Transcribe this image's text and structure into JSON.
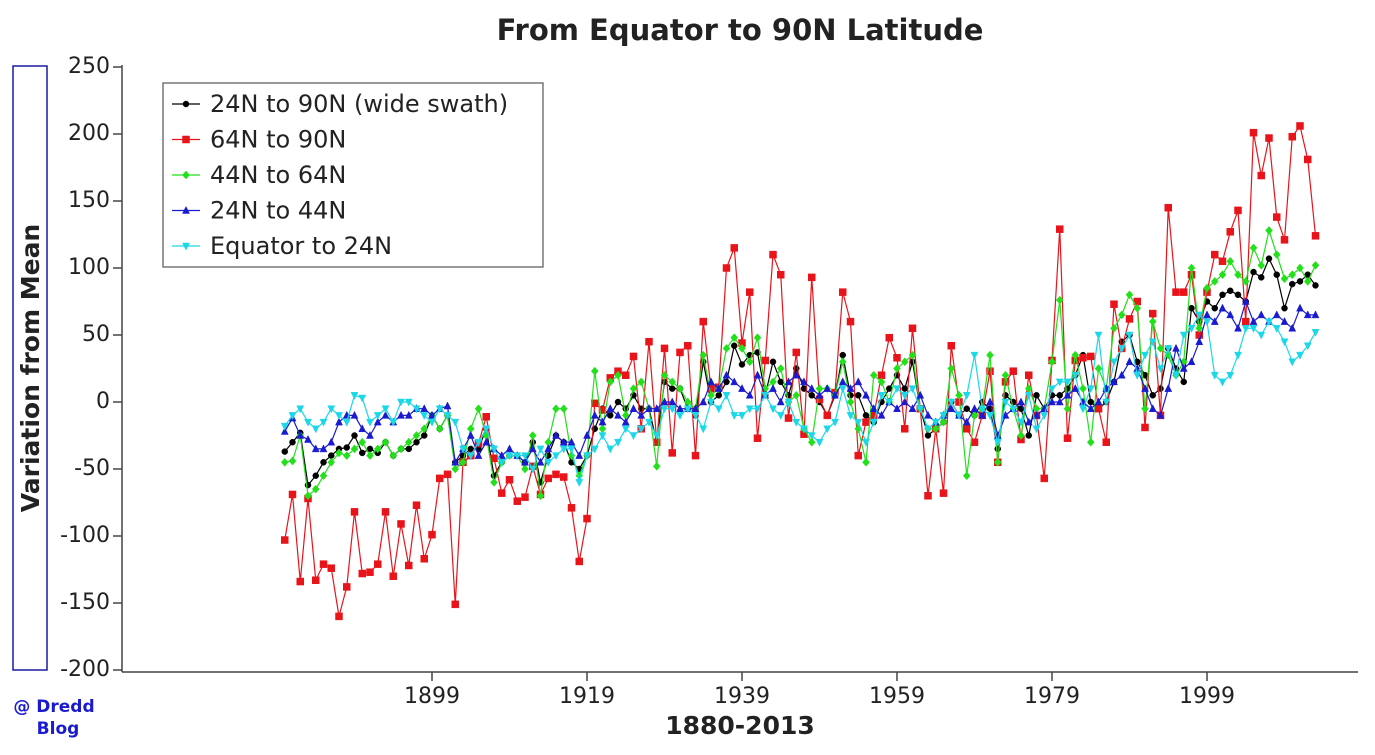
{
  "chart_data": {
    "type": "line",
    "title": "From Equator to 90N Latitude",
    "xlabel": "1880-2013",
    "ylabel": "Variation from Mean",
    "credit": [
      "@ Dredd",
      "Blog"
    ],
    "xlim": [
      1859,
      2019
    ],
    "xticks": [
      1899,
      1919,
      1939,
      1959,
      1979,
      1999
    ],
    "ylim": [
      -200,
      250
    ],
    "yticks": [
      -200,
      -150,
      -100,
      -50,
      0,
      50,
      100,
      150,
      200,
      250
    ],
    "legend": "upper left",
    "x": [
      1880,
      1881,
      1882,
      1883,
      1884,
      1885,
      1886,
      1887,
      1888,
      1889,
      1890,
      1891,
      1892,
      1893,
      1894,
      1895,
      1896,
      1897,
      1898,
      1899,
      1900,
      1901,
      1902,
      1903,
      1904,
      1905,
      1906,
      1907,
      1908,
      1909,
      1910,
      1911,
      1912,
      1913,
      1914,
      1915,
      1916,
      1917,
      1918,
      1919,
      1920,
      1921,
      1922,
      1923,
      1924,
      1925,
      1926,
      1927,
      1928,
      1929,
      1930,
      1931,
      1932,
      1933,
      1934,
      1935,
      1936,
      1937,
      1938,
      1939,
      1940,
      1941,
      1942,
      1943,
      1944,
      1945,
      1946,
      1947,
      1948,
      1949,
      1950,
      1951,
      1952,
      1953,
      1954,
      1955,
      1956,
      1957,
      1958,
      1959,
      1960,
      1961,
      1962,
      1963,
      1964,
      1965,
      1966,
      1967,
      1968,
      1969,
      1970,
      1971,
      1972,
      1973,
      1974,
      1975,
      1976,
      1977,
      1978,
      1979,
      1980,
      1981,
      1982,
      1983,
      1984,
      1985,
      1986,
      1987,
      1988,
      1989,
      1990,
      1991,
      1992,
      1993,
      1994,
      1995,
      1996,
      1997,
      1998,
      1999,
      2000,
      2001,
      2002,
      2003,
      2004,
      2005,
      2006,
      2007,
      2008,
      2009,
      2010,
      2011,
      2012,
      2013
    ],
    "series": [
      {
        "name": "24N to 90N (wide swath)",
        "color": "#000000",
        "marker": "circle",
        "values": [
          -37,
          -30,
          -23,
          -62,
          -55,
          -45,
          -40,
          -35,
          -34,
          -25,
          -38,
          -35,
          -38,
          -30,
          -40,
          -35,
          -35,
          -30,
          -25,
          -10,
          -20,
          -10,
          -45,
          -40,
          -35,
          -35,
          -20,
          -55,
          -45,
          -40,
          -40,
          -45,
          -30,
          -60,
          -40,
          -25,
          -30,
          -45,
          -50,
          -40,
          -20,
          -5,
          -10,
          0,
          -5,
          5,
          -5,
          -5,
          -30,
          15,
          10,
          10,
          -5,
          -10,
          30,
          0,
          5,
          15,
          42,
          28,
          35,
          37,
          5,
          30,
          15,
          5,
          25,
          10,
          5,
          0,
          -10,
          5,
          35,
          5,
          5,
          -10,
          -15,
          0,
          10,
          20,
          10,
          30,
          -5,
          -25,
          -20,
          -15,
          0,
          -10,
          -5,
          -10,
          0,
          -5,
          -35,
          5,
          0,
          -5,
          -25,
          5,
          -5,
          5,
          5,
          10,
          20,
          35,
          0,
          -5,
          0,
          15,
          45,
          50,
          30,
          20,
          5,
          10,
          40,
          25,
          15,
          70,
          60,
          75,
          70,
          80,
          83,
          80,
          75,
          97,
          93,
          107,
          95,
          70,
          88,
          90,
          95,
          87
        ]
      },
      {
        "name": "64N to 90N",
        "color": "#e8141a",
        "marker": "square",
        "values": [
          -103,
          -69,
          -134,
          -72,
          -133,
          -121,
          -124,
          -160,
          -138,
          -82,
          -128,
          -127,
          -121,
          -82,
          -130,
          -91,
          -122,
          -77,
          -117,
          -99,
          -57,
          -54,
          -151,
          -45,
          -40,
          -31,
          -11,
          -42,
          -68,
          -58,
          -74,
          -71,
          -48,
          -69,
          -57,
          -54,
          -56,
          -79,
          -119,
          -87,
          -1,
          -6,
          18,
          23,
          20,
          34,
          -20,
          45,
          -30,
          40,
          -38,
          37,
          42,
          -40,
          60,
          10,
          11,
          100,
          115,
          44,
          82,
          -27,
          31,
          110,
          95,
          -12,
          37,
          -24,
          93,
          2,
          -10,
          7,
          82,
          60,
          -40,
          -15,
          -10,
          20,
          48,
          33,
          -20,
          55,
          -5,
          -70,
          -20,
          -68,
          42,
          0,
          -20,
          -30,
          -10,
          23,
          -45,
          15,
          23,
          -28,
          20,
          -10,
          -57,
          31,
          129,
          -27,
          31,
          33,
          34,
          -5,
          -30,
          73,
          40,
          62,
          75,
          -19,
          66,
          -10,
          145,
          82,
          82,
          95,
          50,
          82,
          110,
          105,
          127,
          143,
          60,
          201,
          169,
          197,
          138,
          121,
          198,
          206,
          181,
          124
        ]
      },
      {
        "name": "44N to 64N",
        "color": "#22e01a",
        "marker": "diamond",
        "values": [
          -45,
          -44,
          -25,
          -70,
          -65,
          -55,
          -45,
          -38,
          -40,
          -35,
          -30,
          -40,
          -35,
          -30,
          -40,
          -35,
          -30,
          -25,
          -20,
          -10,
          -20,
          -10,
          -50,
          -45,
          -20,
          -5,
          -25,
          -60,
          -45,
          -40,
          -40,
          -50,
          -25,
          -70,
          -30,
          -5,
          -5,
          -40,
          -55,
          -40,
          23,
          -20,
          15,
          20,
          -10,
          10,
          15,
          -5,
          -48,
          20,
          15,
          10,
          0,
          -5,
          35,
          5,
          10,
          40,
          48,
          40,
          30,
          48,
          10,
          15,
          25,
          0,
          5,
          -20,
          -30,
          10,
          10,
          5,
          30,
          0,
          -20,
          -45,
          20,
          15,
          0,
          25,
          30,
          35,
          -5,
          -20,
          -20,
          -15,
          25,
          5,
          -55,
          -10,
          -5,
          35,
          -45,
          20,
          -5,
          -25,
          10,
          -5,
          -5,
          30,
          76,
          -5,
          35,
          10,
          -30,
          25,
          10,
          55,
          65,
          80,
          70,
          -5,
          60,
          40,
          35,
          20,
          30,
          100,
          55,
          85,
          90,
          95,
          105,
          95,
          90,
          115,
          102,
          128,
          110,
          92,
          95,
          100,
          90,
          102
        ]
      },
      {
        "name": "24N to 44N",
        "color": "#1a1ad0",
        "marker": "triangle-up",
        "values": [
          -22,
          -12,
          -25,
          -28,
          -35,
          -35,
          -30,
          -15,
          -10,
          -10,
          -20,
          -25,
          -15,
          -10,
          -15,
          -10,
          -10,
          -5,
          -5,
          -10,
          -5,
          -3,
          -45,
          -35,
          -25,
          -40,
          -30,
          -35,
          -40,
          -35,
          -40,
          -45,
          -35,
          -45,
          -35,
          -25,
          -30,
          -30,
          -40,
          -25,
          -10,
          -15,
          -5,
          -10,
          -15,
          -5,
          -10,
          -5,
          -5,
          0,
          0,
          -5,
          -5,
          -5,
          0,
          15,
          10,
          20,
          15,
          10,
          5,
          20,
          5,
          10,
          0,
          15,
          20,
          15,
          10,
          5,
          10,
          5,
          15,
          10,
          15,
          5,
          -5,
          -10,
          0,
          -5,
          0,
          -5,
          5,
          -10,
          -15,
          -10,
          -5,
          -10,
          -15,
          -5,
          -10,
          0,
          -25,
          -10,
          -5,
          0,
          -15,
          -10,
          -5,
          0,
          0,
          5,
          10,
          0,
          -5,
          0,
          10,
          15,
          20,
          30,
          25,
          10,
          -5,
          -10,
          10,
          40,
          25,
          30,
          45,
          65,
          60,
          70,
          65,
          55,
          75,
          60,
          65,
          60,
          65,
          60,
          55,
          70,
          65,
          65
        ]
      },
      {
        "name": "Equator to 24N",
        "color": "#1ad8e8",
        "marker": "triangle-down",
        "values": [
          -18,
          -10,
          -5,
          -15,
          -20,
          -15,
          -5,
          -10,
          -15,
          5,
          3,
          -15,
          -10,
          -5,
          -15,
          0,
          0,
          -5,
          -10,
          -15,
          -5,
          -10,
          -15,
          -35,
          -40,
          -30,
          -20,
          -35,
          -45,
          -40,
          -40,
          -40,
          -50,
          -35,
          -45,
          -40,
          -35,
          -35,
          -60,
          -40,
          -35,
          -25,
          -35,
          -30,
          -20,
          -25,
          -20,
          -15,
          -25,
          -5,
          -5,
          -10,
          -5,
          -10,
          -20,
          0,
          -5,
          5,
          -10,
          -10,
          -5,
          -5,
          5,
          -5,
          -10,
          0,
          -15,
          -20,
          -25,
          -30,
          -20,
          -15,
          10,
          -10,
          -15,
          -30,
          -15,
          5,
          0,
          10,
          5,
          10,
          -5,
          -20,
          -15,
          -10,
          0,
          -10,
          5,
          35,
          -5,
          -10,
          -30,
          0,
          -5,
          -15,
          5,
          -20,
          -10,
          10,
          15,
          15,
          20,
          -5,
          10,
          50,
          0,
          30,
          40,
          50,
          20,
          35,
          45,
          25,
          40,
          20,
          50,
          55,
          65,
          60,
          20,
          15,
          20,
          35,
          55,
          55,
          50,
          60,
          55,
          45,
          30,
          35,
          42,
          52
        ]
      }
    ]
  }
}
